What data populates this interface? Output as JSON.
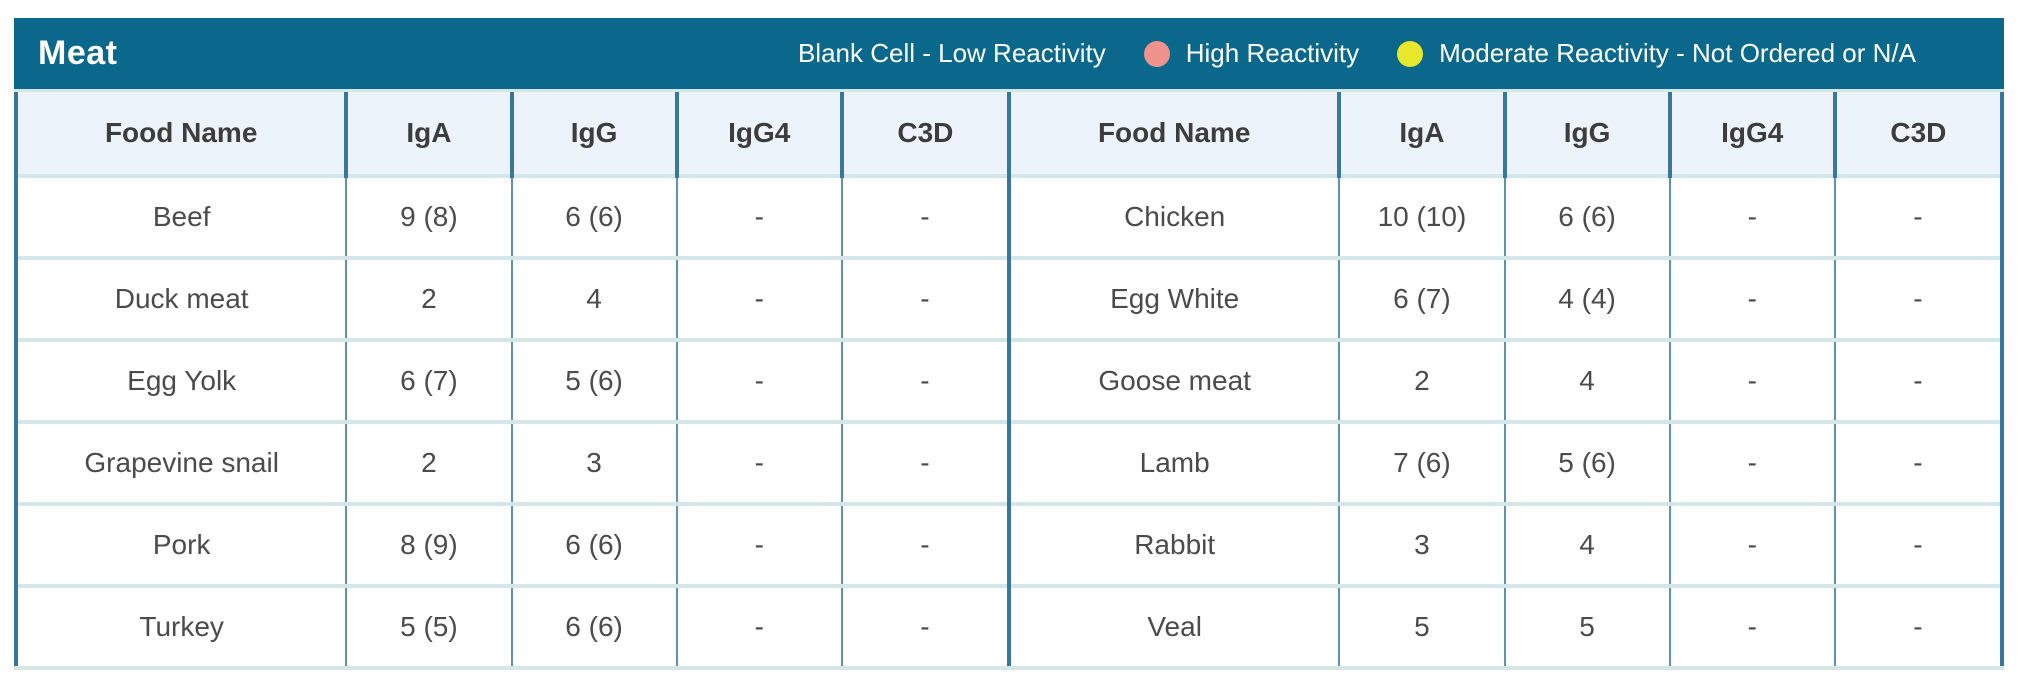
{
  "title": "Meat",
  "legend": {
    "blank_label": "Blank Cell - Low Reactivity",
    "high_label": "High Reactivity",
    "moderate_label": "Moderate Reactivity - Not Ordered or N/A",
    "high_color": "#f0938d",
    "moderate_color": "#e7e72c"
  },
  "colors": {
    "header_bar": "#09688c",
    "header_row_bg": "#ecf3fb",
    "dark_divider": "#36789b",
    "light_separator": "#d5e6e9",
    "cell_divider": "#5b93b1",
    "cell_text": "#4b4b4b"
  },
  "columns": [
    "Food Name",
    "IgA",
    "IgG",
    "IgG4",
    "C3D"
  ],
  "tables": [
    {
      "rows": [
        {
          "food": "Beef",
          "values": [
            "9 (8)",
            "6 (6)",
            "-",
            "-"
          ]
        },
        {
          "food": "Duck meat",
          "values": [
            "2",
            "4",
            "-",
            "-"
          ]
        },
        {
          "food": "Egg Yolk",
          "values": [
            "6 (7)",
            "5 (6)",
            "-",
            "-"
          ]
        },
        {
          "food": "Grapevine snail",
          "values": [
            "2",
            "3",
            "-",
            "-"
          ]
        },
        {
          "food": "Pork",
          "values": [
            "8 (9)",
            "6 (6)",
            "-",
            "-"
          ]
        },
        {
          "food": "Turkey",
          "values": [
            "5 (5)",
            "6 (6)",
            "-",
            "-"
          ]
        }
      ]
    },
    {
      "rows": [
        {
          "food": "Chicken",
          "values": [
            "10 (10)",
            "6 (6)",
            "-",
            "-"
          ]
        },
        {
          "food": "Egg White",
          "values": [
            "6 (7)",
            "4 (4)",
            "-",
            "-"
          ]
        },
        {
          "food": "Goose meat",
          "values": [
            "2",
            "4",
            "-",
            "-"
          ]
        },
        {
          "food": "Lamb",
          "values": [
            "7 (6)",
            "5 (6)",
            "-",
            "-"
          ]
        },
        {
          "food": "Rabbit",
          "values": [
            "3",
            "4",
            "-",
            "-"
          ]
        },
        {
          "food": "Veal",
          "values": [
            "5",
            "5",
            "-",
            "-"
          ]
        }
      ]
    }
  ]
}
